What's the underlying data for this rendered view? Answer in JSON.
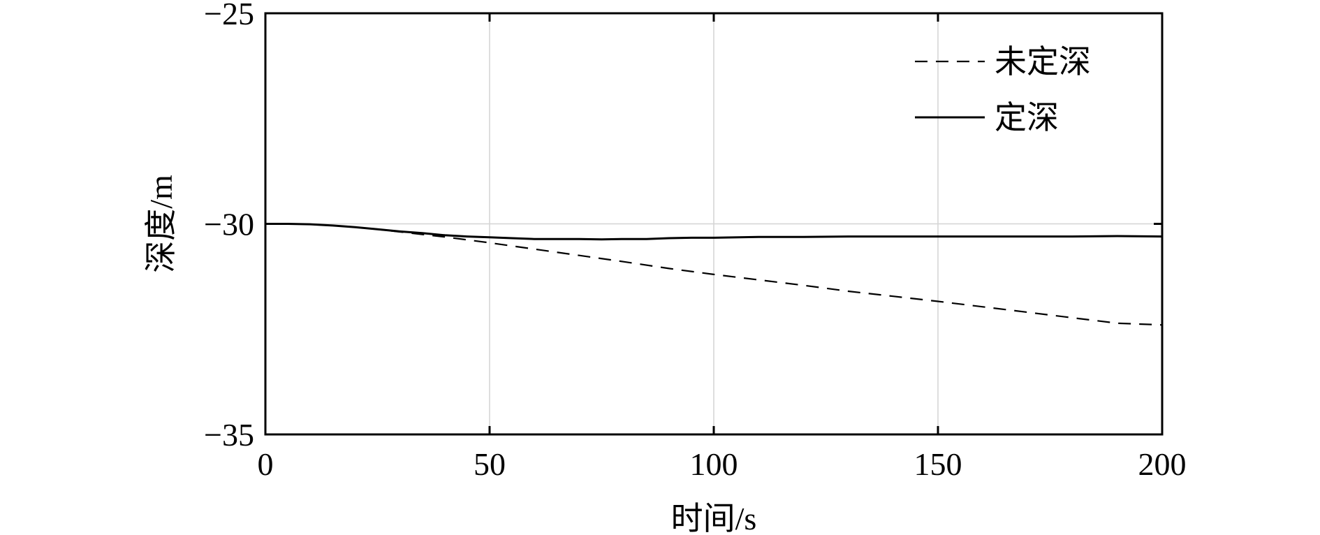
{
  "chart_data": {
    "type": "line",
    "xlabel": "时间/s",
    "ylabel": "深度/m",
    "xlim": [
      0,
      200
    ],
    "ylim": [
      -35,
      -25
    ],
    "xticks": [
      0,
      50,
      100,
      150,
      200
    ],
    "yticks": [
      -25,
      -30,
      -35
    ],
    "xtick_labels": [
      "0",
      "50",
      "100",
      "150",
      "200"
    ],
    "ytick_labels": [
      "−25",
      "−30",
      "−35"
    ],
    "grid": true,
    "legend": "top-right",
    "series": [
      {
        "name": "未定深",
        "style": "dashed",
        "color": "#000000",
        "x": [
          0,
          5,
          10,
          15,
          20,
          25,
          30,
          35,
          40,
          50,
          60,
          70,
          80,
          90,
          100,
          110,
          120,
          130,
          140,
          150,
          160,
          170,
          180,
          190,
          200
        ],
        "y": [
          -30.0,
          -30.0,
          -30.01,
          -30.04,
          -30.08,
          -30.13,
          -30.19,
          -30.25,
          -30.31,
          -30.45,
          -30.6,
          -30.75,
          -30.9,
          -31.06,
          -31.2,
          -31.33,
          -31.46,
          -31.6,
          -31.72,
          -31.84,
          -31.97,
          -32.1,
          -32.23,
          -32.36,
          -32.4
        ]
      },
      {
        "name": "定深",
        "style": "solid",
        "color": "#000000",
        "x": [
          0,
          5,
          10,
          15,
          20,
          25,
          30,
          35,
          40,
          45,
          50,
          55,
          60,
          65,
          70,
          75,
          80,
          85,
          90,
          95,
          100,
          110,
          120,
          130,
          140,
          150,
          160,
          170,
          180,
          190,
          200
        ],
        "y": [
          -30.0,
          -30.0,
          -30.01,
          -30.04,
          -30.08,
          -30.13,
          -30.18,
          -30.22,
          -30.27,
          -30.3,
          -30.32,
          -30.34,
          -30.36,
          -30.36,
          -30.36,
          -30.37,
          -30.36,
          -30.36,
          -30.34,
          -30.33,
          -30.33,
          -30.31,
          -30.31,
          -30.3,
          -30.3,
          -30.3,
          -30.3,
          -30.3,
          -30.3,
          -30.29,
          -30.3
        ]
      }
    ]
  }
}
